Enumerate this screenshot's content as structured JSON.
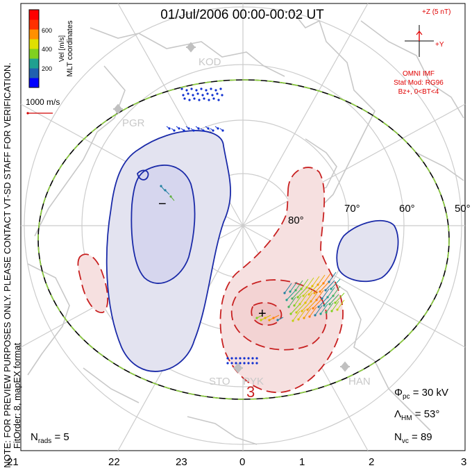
{
  "title": "01/Jul/2006 00:00-00:02 UT",
  "side_note_1": "NOTE: FOR PREVIEW PURPOSES ONLY. PLEASE CONTACT VT-SD STAFF FOR VERIFICATION.",
  "side_note_2": "FitOrder: 8, mapEX format",
  "coord_label": "MLT coordinates",
  "velocity_scale": {
    "unit_label": "Vel [m/s]",
    "ticks": [
      "600",
      "400",
      "200"
    ],
    "colors": [
      "#0000ff",
      "#2060b0",
      "#20a090",
      "#80d020",
      "#e0e000",
      "#ff9000",
      "#ff3000",
      "#ff0000"
    ]
  },
  "reference_vector": "1000 m/s",
  "imf": {
    "z_label": "+Z (5 nT)",
    "y_label": "+Y",
    "source": "OMNI IMF",
    "model": "Stat Mod: RG96",
    "condition": "Bz+, 0<BT<4"
  },
  "latitude_labels": [
    "80°",
    "70°",
    "60°",
    "50°"
  ],
  "stations": [
    "KOD",
    "PGR",
    "STO",
    "PYK",
    "HAN"
  ],
  "potential_markers": [
    "+",
    "−"
  ],
  "contour_labels": [
    "3"
  ],
  "stats": {
    "phi_pc": {
      "symbol": "Φ",
      "sub": "pc",
      "value": " = 30 kV"
    },
    "lambda_hm": {
      "symbol": "Λ",
      "sub": "HM",
      "value": " = 53°"
    },
    "n_vc": {
      "symbol": "N",
      "sub": "vc",
      "value": " = 89"
    },
    "n_rads": {
      "symbol": "N",
      "sub": "rads",
      "value": " = 5"
    }
  },
  "mlt_axis": [
    "21",
    "22",
    "23",
    "0",
    "1",
    "2",
    "3"
  ],
  "colors": {
    "negative_cell": "#e3e3f0",
    "negative_contour": "#1a2aa8",
    "positive_cell": "#f6e0e0",
    "positive_contour": "#c82020",
    "grid": "#cccccc",
    "land": "#c8c8c8",
    "boundary_dash": "#8ccf3c",
    "imf_color": "#e00000"
  }
}
